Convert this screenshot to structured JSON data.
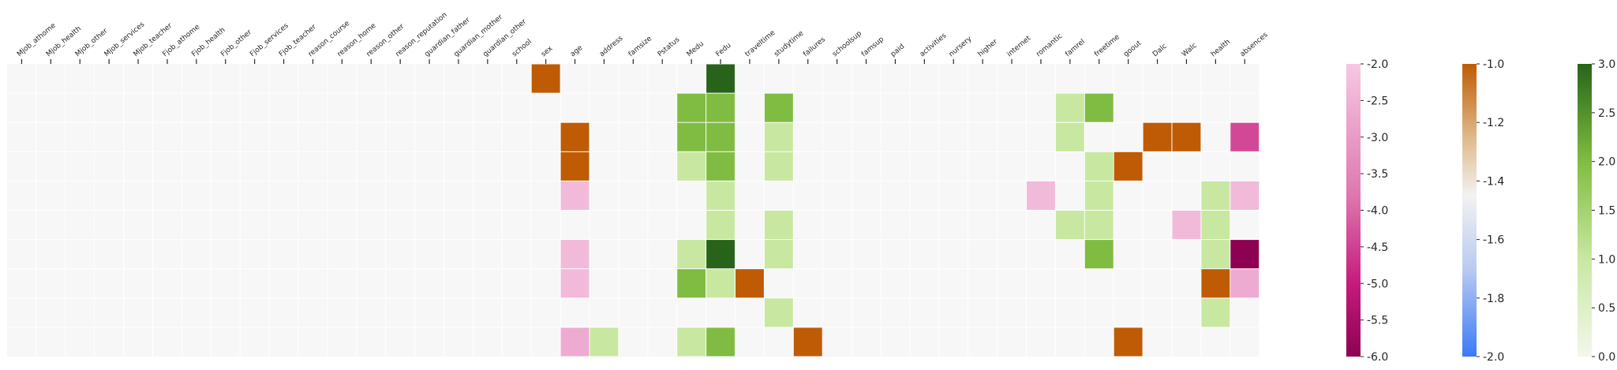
{
  "colors": {
    "background": "#f7f7f7",
    "grid": "#ffffff",
    "text": "#262626"
  },
  "chart_data": {
    "type": "heatmap",
    "title": "",
    "xlabel": "",
    "ylabel": "",
    "x_labels": [
      "Mjob_athome",
      "Mjob_health",
      "Mjob_other",
      "Mjob_services",
      "Mjob_teacher",
      "Fjob_athome",
      "Fjob_health",
      "Fjob_other",
      "Fjob_services",
      "Fjob_teacher",
      "reason_course",
      "reason_home",
      "reason_other",
      "reason_reputation",
      "guardian_father",
      "guardian_mother",
      "guardian_other",
      "school",
      "sex",
      "age",
      "address",
      "famsize",
      "Pstatus",
      "Medu",
      "Fedu",
      "traveltime",
      "studytime",
      "failures",
      "schoolsup",
      "famsup",
      "paid",
      "activities",
      "nursery",
      "higher",
      "internet",
      "romantic",
      "famrel",
      "freetime",
      "goout",
      "Dalc",
      "Walc",
      "health",
      "absences"
    ],
    "n_rows": 10,
    "cells": [
      {
        "row": 0,
        "col": "sex",
        "value": -1.0,
        "scale": "orange"
      },
      {
        "row": 0,
        "col": "Fedu",
        "value": 3.0,
        "scale": "green"
      },
      {
        "row": 1,
        "col": "Medu",
        "value": 2.0,
        "scale": "green"
      },
      {
        "row": 1,
        "col": "Fedu",
        "value": 2.0,
        "scale": "green"
      },
      {
        "row": 1,
        "col": "studytime",
        "value": 2.0,
        "scale": "green"
      },
      {
        "row": 1,
        "col": "famrel",
        "value": 1.0,
        "scale": "green"
      },
      {
        "row": 1,
        "col": "freetime",
        "value": 2.0,
        "scale": "green"
      },
      {
        "row": 2,
        "col": "age",
        "value": -1.0,
        "scale": "orange"
      },
      {
        "row": 2,
        "col": "Medu",
        "value": 2.0,
        "scale": "green"
      },
      {
        "row": 2,
        "col": "Fedu",
        "value": 2.0,
        "scale": "green"
      },
      {
        "row": 2,
        "col": "studytime",
        "value": 1.0,
        "scale": "green"
      },
      {
        "row": 2,
        "col": "famrel",
        "value": 1.0,
        "scale": "green"
      },
      {
        "row": 2,
        "col": "Dalc",
        "value": -1.0,
        "scale": "orange"
      },
      {
        "row": 2,
        "col": "Walc",
        "value": -1.0,
        "scale": "orange"
      },
      {
        "row": 2,
        "col": "absences",
        "value": -4.5,
        "scale": "pink"
      },
      {
        "row": 3,
        "col": "age",
        "value": -1.0,
        "scale": "orange"
      },
      {
        "row": 3,
        "col": "Medu",
        "value": 1.0,
        "scale": "green"
      },
      {
        "row": 3,
        "col": "Fedu",
        "value": 2.0,
        "scale": "green"
      },
      {
        "row": 3,
        "col": "studytime",
        "value": 1.0,
        "scale": "green"
      },
      {
        "row": 3,
        "col": "freetime",
        "value": 1.0,
        "scale": "green"
      },
      {
        "row": 3,
        "col": "goout",
        "value": -1.0,
        "scale": "orange"
      },
      {
        "row": 4,
        "col": "age",
        "value": -2.5,
        "scale": "pink"
      },
      {
        "row": 4,
        "col": "Fedu",
        "value": 1.0,
        "scale": "green"
      },
      {
        "row": 4,
        "col": "romantic",
        "value": -2.5,
        "scale": "pink"
      },
      {
        "row": 4,
        "col": "freetime",
        "value": 1.0,
        "scale": "green"
      },
      {
        "row": 4,
        "col": "health",
        "value": 1.0,
        "scale": "green"
      },
      {
        "row": 4,
        "col": "absences",
        "value": -2.5,
        "scale": "pink"
      },
      {
        "row": 5,
        "col": "Fedu",
        "value": 1.0,
        "scale": "green"
      },
      {
        "row": 5,
        "col": "studytime",
        "value": 1.0,
        "scale": "green"
      },
      {
        "row": 5,
        "col": "famrel",
        "value": 1.0,
        "scale": "green"
      },
      {
        "row": 5,
        "col": "freetime",
        "value": 1.0,
        "scale": "green"
      },
      {
        "row": 5,
        "col": "Walc",
        "value": -2.5,
        "scale": "pink"
      },
      {
        "row": 5,
        "col": "health",
        "value": 1.0,
        "scale": "green"
      },
      {
        "row": 6,
        "col": "age",
        "value": -2.5,
        "scale": "pink"
      },
      {
        "row": 6,
        "col": "Medu",
        "value": 1.0,
        "scale": "green"
      },
      {
        "row": 6,
        "col": "Fedu",
        "value": 3.0,
        "scale": "green"
      },
      {
        "row": 6,
        "col": "studytime",
        "value": 1.0,
        "scale": "green"
      },
      {
        "row": 6,
        "col": "freetime",
        "value": 2.0,
        "scale": "green"
      },
      {
        "row": 6,
        "col": "health",
        "value": 1.0,
        "scale": "green"
      },
      {
        "row": 6,
        "col": "absences",
        "value": -6.0,
        "scale": "pink"
      },
      {
        "row": 7,
        "col": "age",
        "value": -2.5,
        "scale": "pink"
      },
      {
        "row": 7,
        "col": "Medu",
        "value": 2.0,
        "scale": "green"
      },
      {
        "row": 7,
        "col": "Fedu",
        "value": 1.0,
        "scale": "green"
      },
      {
        "row": 7,
        "col": "traveltime",
        "value": -1.0,
        "scale": "orange"
      },
      {
        "row": 7,
        "col": "health",
        "value": -1.0,
        "scale": "orange"
      },
      {
        "row": 7,
        "col": "absences",
        "value": -3.0,
        "scale": "pink"
      },
      {
        "row": 8,
        "col": "studytime",
        "value": 1.0,
        "scale": "green"
      },
      {
        "row": 8,
        "col": "health",
        "value": 1.0,
        "scale": "green"
      },
      {
        "row": 9,
        "col": "age",
        "value": -3.0,
        "scale": "pink"
      },
      {
        "row": 9,
        "col": "address",
        "value": 1.0,
        "scale": "green"
      },
      {
        "row": 9,
        "col": "Medu",
        "value": 1.0,
        "scale": "green"
      },
      {
        "row": 9,
        "col": "Fedu",
        "value": 2.0,
        "scale": "green"
      },
      {
        "row": 9,
        "col": "failures",
        "value": -1.0,
        "scale": "orange"
      },
      {
        "row": 9,
        "col": "goout",
        "value": -1.0,
        "scale": "orange"
      }
    ],
    "colorbars": [
      {
        "name": "pink",
        "min": -6.0,
        "max": -2.0,
        "ticks": [
          "-2.0",
          "-2.5",
          "-3.0",
          "-3.5",
          "-4.0",
          "-4.5",
          "-5.0",
          "-5.5",
          "-6.0"
        ],
        "tick_values": [
          -2.0,
          -2.5,
          -3.0,
          -3.5,
          -4.0,
          -4.5,
          -5.0,
          -5.5,
          -6.0
        ],
        "gradient_top": "#f7c8e2",
        "gradient_mid": "#c51b7d",
        "gradient_bottom": "#8e0152"
      },
      {
        "name": "orange",
        "min": -2.0,
        "max": -1.0,
        "ticks": [
          "-1.0",
          "-1.2",
          "-1.4",
          "-1.6",
          "-1.8",
          "-2.0"
        ],
        "tick_values": [
          -1.0,
          -1.2,
          -1.4,
          -1.6,
          -1.8,
          -2.0
        ],
        "gradient_top": "#bf5b04",
        "gradient_mid": "#f2f2f2",
        "gradient_bottom": "#3b7af7"
      },
      {
        "name": "green",
        "min": 0.0,
        "max": 3.0,
        "ticks": [
          "3.0",
          "2.5",
          "2.0",
          "1.5",
          "1.0",
          "0.5",
          "0.0"
        ],
        "tick_values": [
          3.0,
          2.5,
          2.0,
          1.5,
          1.0,
          0.5,
          0.0
        ],
        "gradient_top": "#276419",
        "gradient_mid": "#7fbc41",
        "gradient_bottom": "#f7f7f7"
      }
    ]
  }
}
